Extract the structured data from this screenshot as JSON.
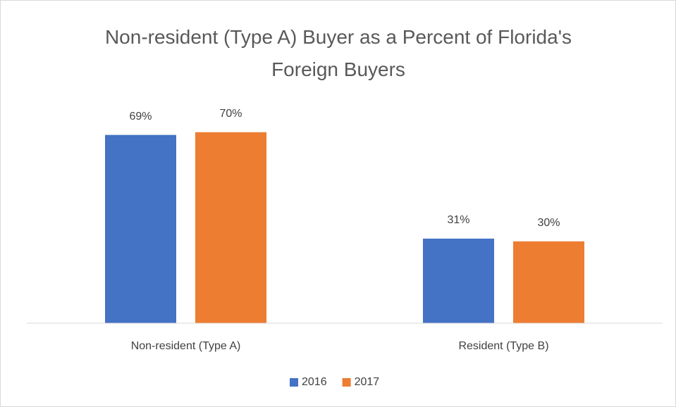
{
  "chart_data": {
    "type": "bar",
    "title": "Non-resident (Type A) Buyer as a Percent of Florida's Foreign Buyers",
    "categories": [
      "Non-resident (Type A)",
      "Resident (Type B)"
    ],
    "series": [
      {
        "name": "2016",
        "color": "#4472c4",
        "values": [
          69,
          31
        ],
        "value_labels": [
          "69%",
          "31%"
        ]
      },
      {
        "name": "2017",
        "color": "#ed7d31",
        "values": [
          70,
          30
        ],
        "value_labels": [
          "70%",
          "30%"
        ]
      }
    ],
    "ylim": [
      0,
      80
    ],
    "legend": "bottom"
  }
}
